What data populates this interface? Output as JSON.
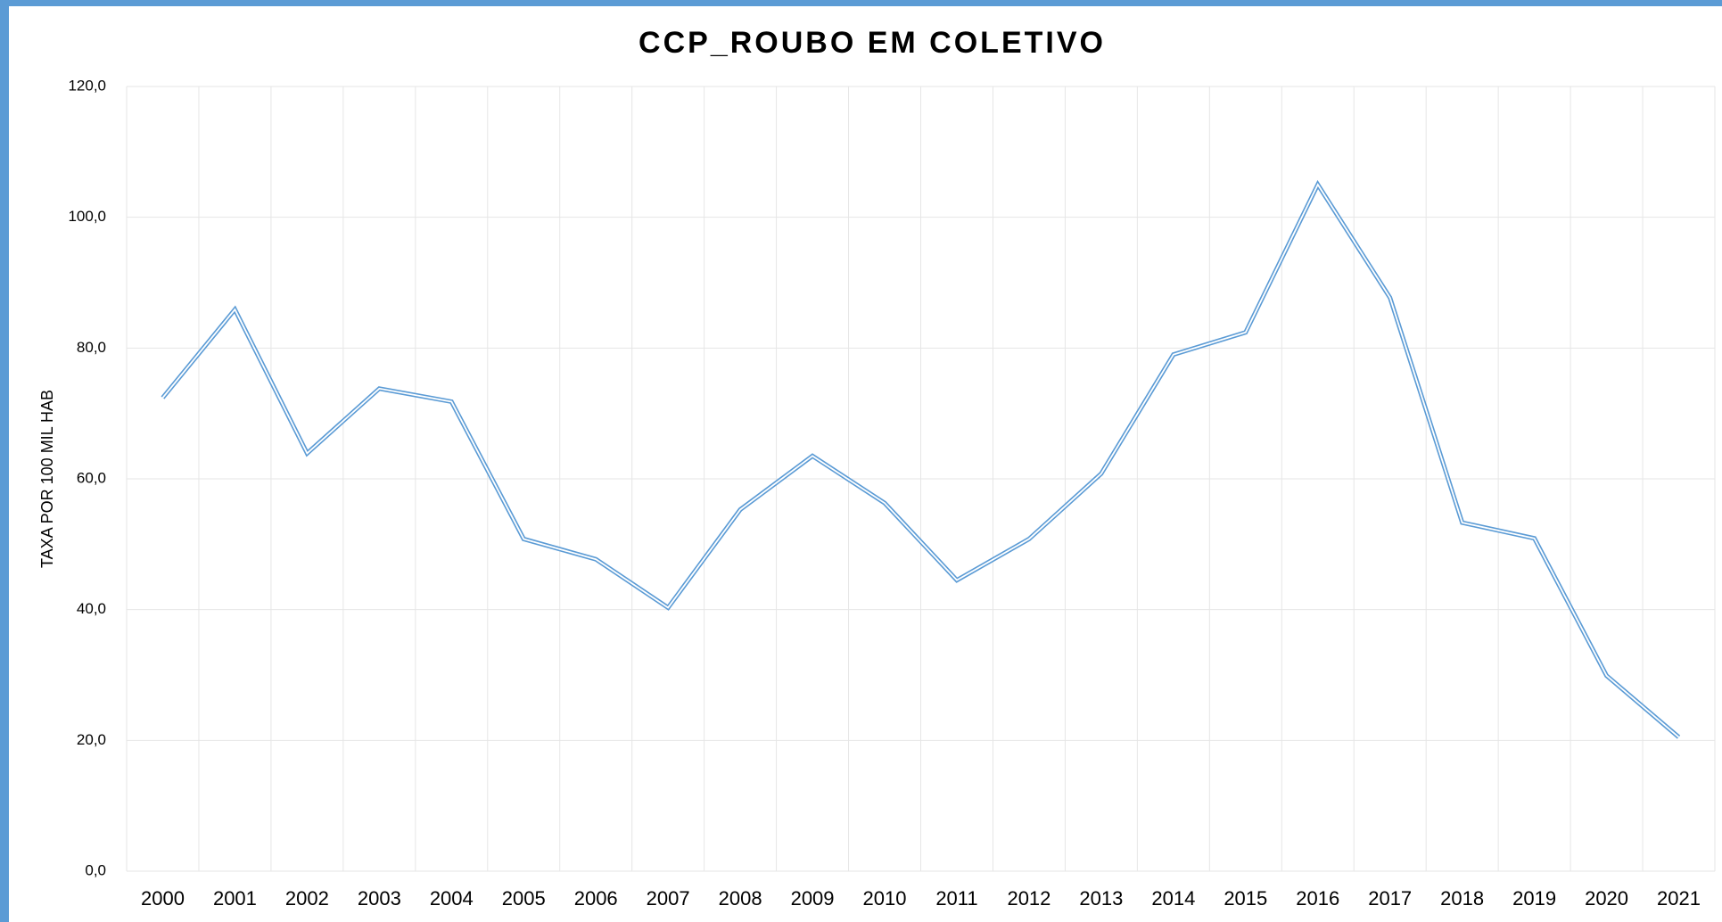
{
  "chart_data": {
    "type": "line",
    "title": "CCP_ROUBO EM COLETIVO",
    "y_label": "TAXA POR 100 MIL HAB",
    "categories": [
      "2000",
      "2001",
      "2002",
      "2003",
      "2004",
      "2005",
      "2006",
      "2007",
      "2008",
      "2009",
      "2010",
      "2011",
      "2012",
      "2013",
      "2014",
      "2015",
      "2016",
      "2017",
      "2018",
      "2019",
      "2020",
      "2021"
    ],
    "series": [
      {
        "name": "CCP_ROUBO EM COLETIVO",
        "color": "#5b9bd5",
        "values": [
          72.4,
          85.9,
          63.9,
          73.8,
          71.8,
          50.8,
          47.7,
          40.3,
          55.3,
          63.5,
          56.3,
          44.5,
          50.8,
          60.8,
          79.0,
          82.4,
          105.0,
          87.7,
          53.3,
          50.9,
          29.9,
          20.5
        ]
      }
    ],
    "ylim": [
      0,
      120
    ],
    "yticks": [
      {
        "value": 0,
        "label": "0,0"
      },
      {
        "value": 20,
        "label": "20,0"
      },
      {
        "value": 40,
        "label": "40,0"
      },
      {
        "value": 60,
        "label": "60,0"
      },
      {
        "value": 80,
        "label": "80,0"
      },
      {
        "value": 100,
        "label": "100,0"
      },
      {
        "value": 120,
        "label": "120,0"
      }
    ],
    "grid": true
  }
}
